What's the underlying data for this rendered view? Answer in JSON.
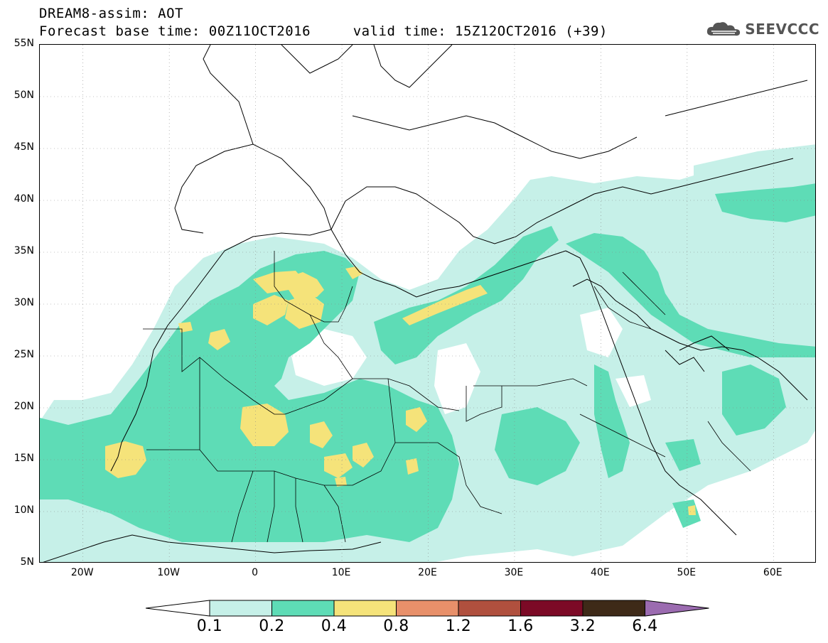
{
  "header": {
    "line1": "DREAM8-assim: AOT",
    "line2": "Forecast base time: 00Z11OCT2016     valid time: 15Z12OCT2016 (+39)"
  },
  "logo": {
    "text": "SEEVCCC",
    "icon": "cloud-icon"
  },
  "map": {
    "variable": "AOT",
    "lat_labels": [
      "55N",
      "50N",
      "45N",
      "40N",
      "35N",
      "30N",
      "25N",
      "20N",
      "15N",
      "10N",
      "5N"
    ],
    "lon_labels": [
      "20W",
      "10W",
      "0",
      "10E",
      "20E",
      "30E",
      "40E",
      "50E",
      "60E"
    ],
    "lat_range": [
      5,
      55
    ],
    "lon_range": [
      -25,
      65
    ],
    "grid": "dotted"
  },
  "legend": {
    "labels": [
      "0.1",
      "0.2",
      "0.4",
      "0.8",
      "1.2",
      "1.6",
      "3.2",
      "6.4"
    ],
    "colors": {
      "below": "#ffffff",
      "bin_0.1_0.2": "#c6f0e8",
      "bin_0.2_0.4": "#5edcb6",
      "bin_0.4_0.8": "#f5e37a",
      "bin_0.8_1.2": "#e8906a",
      "bin_1.2_1.6": "#b0503e",
      "bin_1.6_3.2": "#7c0a26",
      "bin_3.2_6.4": "#3e2a18",
      "above": "#9b6bb0"
    }
  }
}
